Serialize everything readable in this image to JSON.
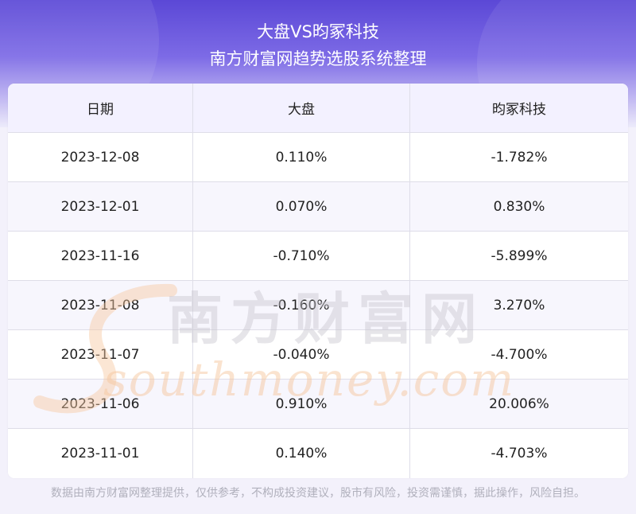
{
  "header": {
    "title": "大盘VS昀冢科技",
    "subtitle": "南方财富网趋势选股系统整理"
  },
  "table": {
    "columns": [
      "日期",
      "大盘",
      "昀冢科技"
    ],
    "rows": [
      {
        "date": "2023-12-08",
        "market": "0.110%",
        "stock": "-1.782%"
      },
      {
        "date": "2023-12-01",
        "market": "0.070%",
        "stock": "0.830%"
      },
      {
        "date": "2023-11-16",
        "market": "-0.710%",
        "stock": "-5.899%"
      },
      {
        "date": "2023-11-08",
        "market": "-0.160%",
        "stock": "3.270%"
      },
      {
        "date": "2023-11-07",
        "market": "-0.040%",
        "stock": "-4.700%"
      },
      {
        "date": "2023-11-06",
        "market": "0.910%",
        "stock": "20.006%"
      },
      {
        "date": "2023-11-01",
        "market": "0.140%",
        "stock": "-4.703%"
      }
    ]
  },
  "watermark": {
    "cn": "南方财富网",
    "en": "southmoney.com"
  },
  "footer": {
    "disclaimer": "数据由南方财富网整理提供，仅供参考，不构成投资建议，股市有风险，投资需谨慎，据此操作，风险自担。"
  },
  "colors": {
    "header_top": "#5b48d6",
    "header_row": "#f3f1ff",
    "watermark_orange": "#f6c8a0"
  }
}
